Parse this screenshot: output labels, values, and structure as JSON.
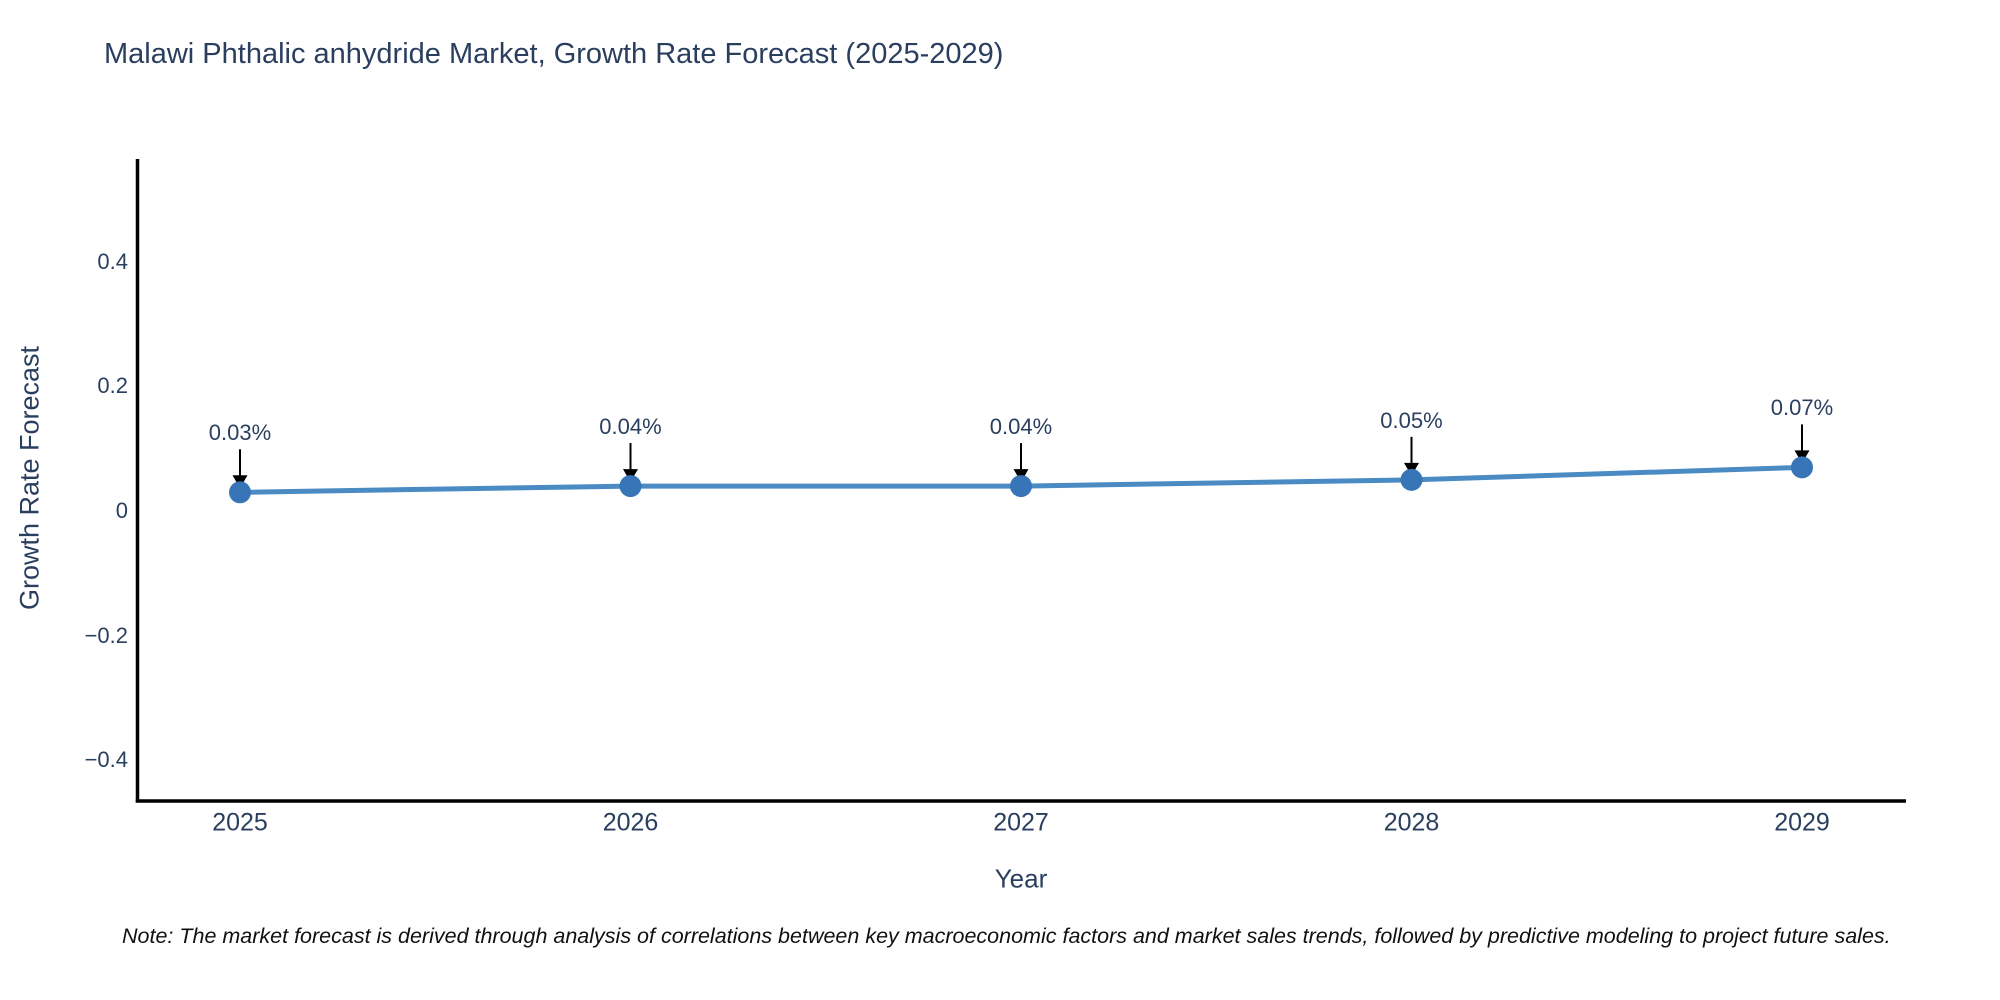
{
  "chart_data": {
    "type": "line",
    "title": "Malawi Phthalic anhydride Market, Growth Rate Forecast (2025-2029)",
    "xlabel": "Year",
    "ylabel": "Growth Rate Forecast",
    "x": [
      2025,
      2026,
      2027,
      2028,
      2029
    ],
    "xticks": [
      "2025",
      "2026",
      "2027",
      "2028",
      "2029"
    ],
    "yticks": [
      {
        "value": 0.4,
        "label": "0.4"
      },
      {
        "value": 0.2,
        "label": "0.2"
      },
      {
        "value": 0,
        "label": "0"
      },
      {
        "value": -0.2,
        "label": "−0.2"
      },
      {
        "value": -0.4,
        "label": "−0.4"
      }
    ],
    "ylim": [
      -0.47,
      0.57
    ],
    "grid": false,
    "legend_position": "none",
    "series": [
      {
        "name": "Growth Rate Forecast",
        "values": [
          0.03,
          0.04,
          0.04,
          0.05,
          0.07
        ],
        "point_labels": [
          "0.03%",
          "0.04%",
          "0.04%",
          "0.05%",
          "0.07%"
        ],
        "line_color": "#4a8bc4",
        "marker_color": "#3875b7"
      }
    ],
    "annotation_arrow_color": "#000000",
    "axis_line_color": "#000000",
    "text_color": "#2a3f5f"
  },
  "note": "Note: The market forecast is derived through analysis of correlations between key macroeconomic factors and market sales trends, followed by predictive modeling to project future sales."
}
